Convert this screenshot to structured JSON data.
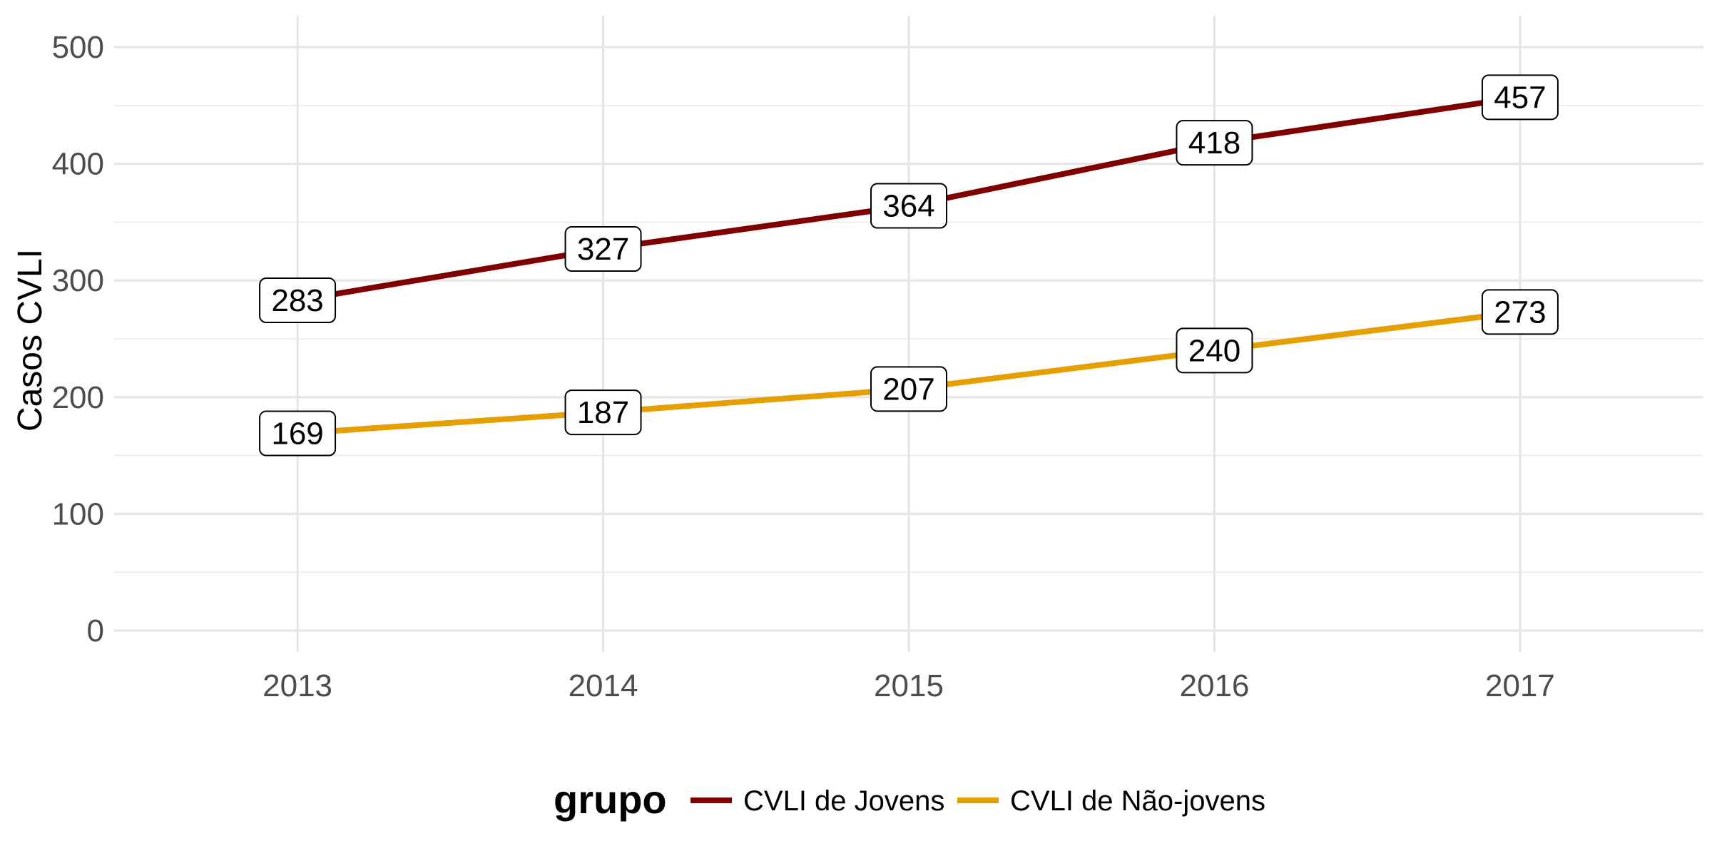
{
  "chart_data": {
    "type": "line",
    "title": "",
    "xlabel": "",
    "ylabel": "Casos CVLI",
    "x": [
      2013,
      2014,
      2015,
      2016,
      2017
    ],
    "xlim": [
      2012.4,
      2017.6
    ],
    "ylim": [
      0,
      500
    ],
    "y_ticks": [
      0,
      100,
      200,
      300,
      400,
      500
    ],
    "grid": true,
    "legend": {
      "title": "grupo",
      "position": "bottom"
    },
    "series": [
      {
        "name": "CVLI de Jovens",
        "color": "#800000",
        "values": [
          283,
          327,
          364,
          418,
          457
        ]
      },
      {
        "name": "CVLI de Não-jovens",
        "color": "#E69F00",
        "values": [
          169,
          187,
          207,
          240,
          273
        ]
      }
    ]
  }
}
